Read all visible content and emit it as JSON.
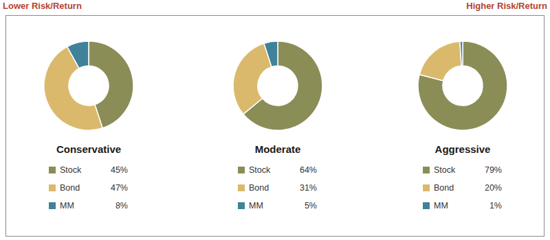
{
  "header": {
    "left": "Lower Risk/Return",
    "right": "Higher Risk/Return"
  },
  "chart_data": [
    {
      "type": "donut",
      "title": "Conservative",
      "categories": [
        "Stock",
        "Bond",
        "MM"
      ],
      "values": [
        45,
        47,
        8
      ],
      "value_labels": [
        "45%",
        "47%",
        "8%"
      ],
      "colors": [
        "#8b8d56",
        "#dbb96c",
        "#3f8299"
      ],
      "legend": "bottom"
    },
    {
      "type": "donut",
      "title": "Moderate",
      "categories": [
        "Stock",
        "Bond",
        "MM"
      ],
      "values": [
        64,
        31,
        5
      ],
      "value_labels": [
        "64%",
        "31%",
        "5%"
      ],
      "colors": [
        "#8b8d56",
        "#dbb96c",
        "#3f8299"
      ],
      "legend": "bottom"
    },
    {
      "type": "donut",
      "title": "Aggressive",
      "categories": [
        "Stock",
        "Bond",
        "MM"
      ],
      "values": [
        79,
        20,
        1
      ],
      "value_labels": [
        "79%",
        "20%",
        "1%"
      ],
      "colors": [
        "#8b8d56",
        "#dbb96c",
        "#3f8299"
      ],
      "legend": "bottom"
    }
  ]
}
